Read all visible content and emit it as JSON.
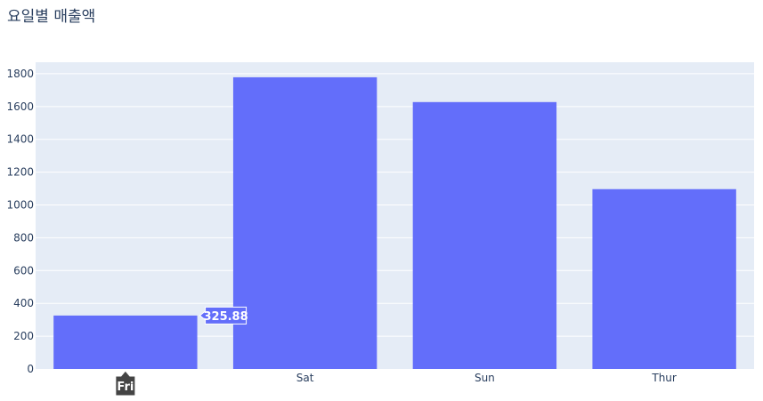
{
  "chart_data": {
    "type": "bar",
    "title": "요일별 매출액",
    "categories": [
      "Fri",
      "Sat",
      "Sun",
      "Thur"
    ],
    "values": [
      325.88,
      1778.4,
      1627.16,
      1096.33
    ],
    "xlabel": "",
    "ylabel": "",
    "ylim": [
      0,
      1870
    ],
    "yticks": [
      0,
      200,
      400,
      600,
      800,
      1000,
      1200,
      1400,
      1600,
      1800
    ],
    "grid": true,
    "bar_color": "#636efa",
    "plot_bg": "#e5ecf6",
    "hover": {
      "category": "Fri",
      "value_label": "325.88"
    }
  }
}
